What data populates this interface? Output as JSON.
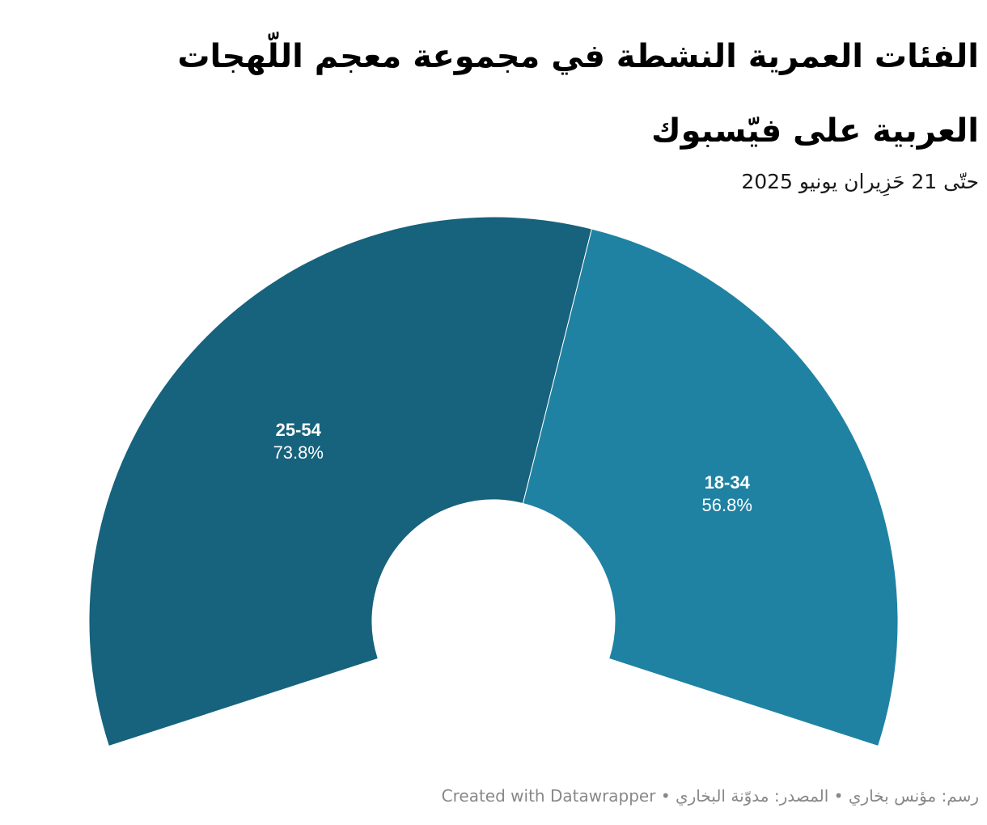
{
  "title": "الفئات العمرية النشطة في مجموعة معجم اللّهجات العربية على فيّسبوك",
  "subtitle": "حتّى 21 حَزِيران يونيو 2025",
  "footer": {
    "credit": "رسم: مؤنس بخاري",
    "separator": "•",
    "source": "المصدر: مدوّنة البخاري",
    "created_with": "Created with Datawrapper"
  },
  "chart_data": {
    "type": "pie",
    "variant": "semi-donut",
    "slices": [
      {
        "label": "25-54",
        "value": 73.8,
        "display": "73.8%",
        "color": "#17627c"
      },
      {
        "label": "18-34",
        "value": 56.8,
        "display": "56.8%",
        "color": "#1f82a2"
      }
    ]
  }
}
